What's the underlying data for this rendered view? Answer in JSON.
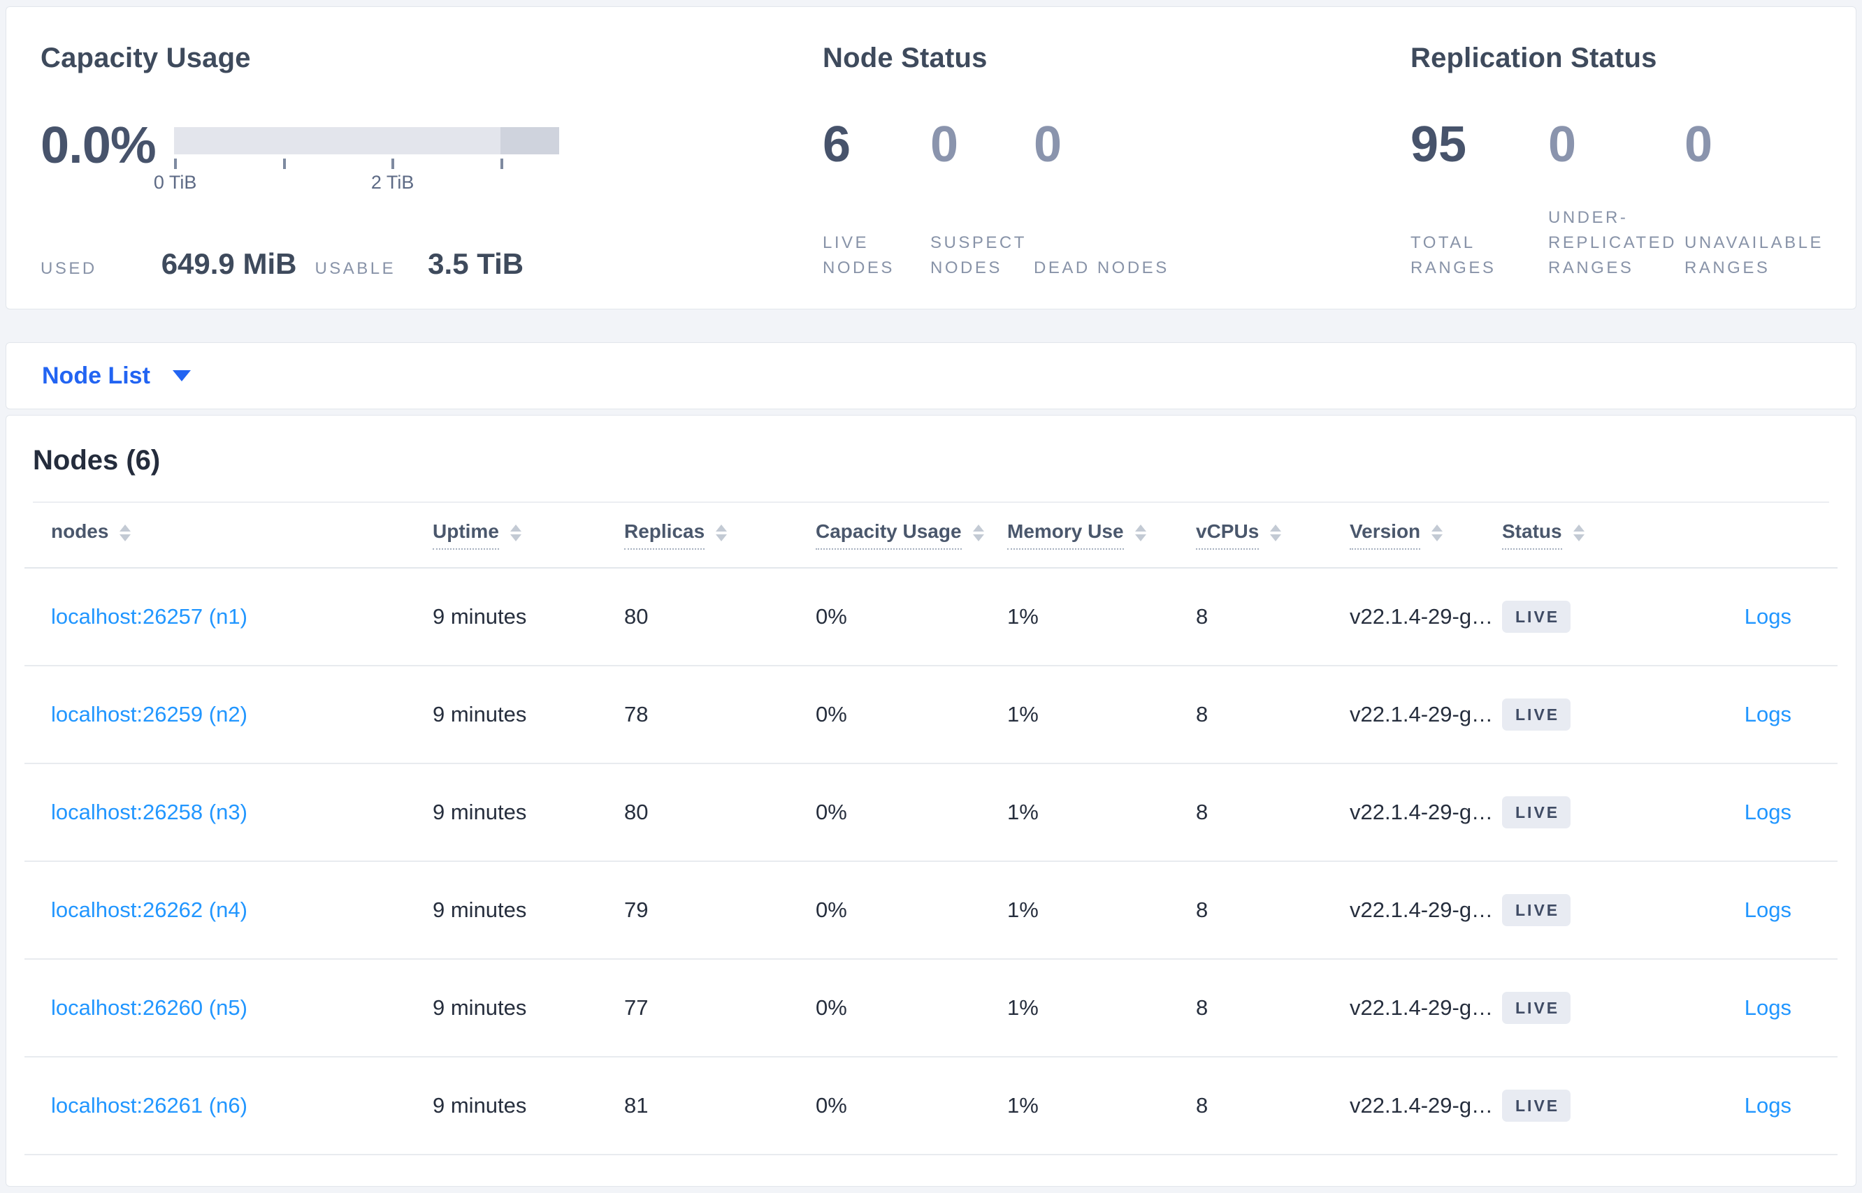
{
  "summary": {
    "capacity": {
      "title": "Capacity Usage",
      "percent": "0.0%",
      "axis_ticks": [
        "0 TiB",
        "2 TiB"
      ],
      "used_label": "USED",
      "used_value": "649.9 MiB",
      "usable_label": "USABLE",
      "usable_value": "3.5 TiB",
      "bar_color": "#e3e5ec",
      "bar_dark_color": "#cfd3dd"
    },
    "node_status": {
      "title": "Node Status",
      "stats": [
        {
          "value": "6",
          "label": "LIVE NODES"
        },
        {
          "value": "0",
          "label": "SUSPECT NODES"
        },
        {
          "value": "0",
          "label": "DEAD NODES"
        }
      ]
    },
    "replication": {
      "title": "Replication Status",
      "stats": [
        {
          "value": "95",
          "label": "TOTAL RANGES"
        },
        {
          "value": "0",
          "label": "UNDER-REPLICATED RANGES"
        },
        {
          "value": "0",
          "label": "UNAVAILABLE RANGES"
        }
      ]
    }
  },
  "view_selector": {
    "label": "Node List"
  },
  "nodes_section": {
    "heading": "Nodes (6)",
    "columns": [
      {
        "label": "nodes"
      },
      {
        "label": "Uptime"
      },
      {
        "label": "Replicas"
      },
      {
        "label": "Capacity Usage"
      },
      {
        "label": "Memory Use"
      },
      {
        "label": "vCPUs"
      },
      {
        "label": "Version"
      },
      {
        "label": "Status"
      }
    ],
    "rows": [
      {
        "node": "localhost:26257 (n1)",
        "uptime": "9 minutes",
        "replicas": "80",
        "capacity": "0%",
        "memory": "1%",
        "vcpus": "8",
        "version": "v22.1.4-29-g…",
        "status": "LIVE",
        "logs": "Logs"
      },
      {
        "node": "localhost:26259 (n2)",
        "uptime": "9 minutes",
        "replicas": "78",
        "capacity": "0%",
        "memory": "1%",
        "vcpus": "8",
        "version": "v22.1.4-29-g…",
        "status": "LIVE",
        "logs": "Logs"
      },
      {
        "node": "localhost:26258 (n3)",
        "uptime": "9 minutes",
        "replicas": "80",
        "capacity": "0%",
        "memory": "1%",
        "vcpus": "8",
        "version": "v22.1.4-29-g…",
        "status": "LIVE",
        "logs": "Logs"
      },
      {
        "node": "localhost:26262 (n4)",
        "uptime": "9 minutes",
        "replicas": "79",
        "capacity": "0%",
        "memory": "1%",
        "vcpus": "8",
        "version": "v22.1.4-29-g…",
        "status": "LIVE",
        "logs": "Logs"
      },
      {
        "node": "localhost:26260 (n5)",
        "uptime": "9 minutes",
        "replicas": "77",
        "capacity": "0%",
        "memory": "1%",
        "vcpus": "8",
        "version": "v22.1.4-29-g…",
        "status": "LIVE",
        "logs": "Logs"
      },
      {
        "node": "localhost:26261 (n6)",
        "uptime": "9 minutes",
        "replicas": "81",
        "capacity": "0%",
        "memory": "1%",
        "vcpus": "8",
        "version": "v22.1.4-29-g…",
        "status": "LIVE",
        "logs": "Logs"
      }
    ]
  }
}
